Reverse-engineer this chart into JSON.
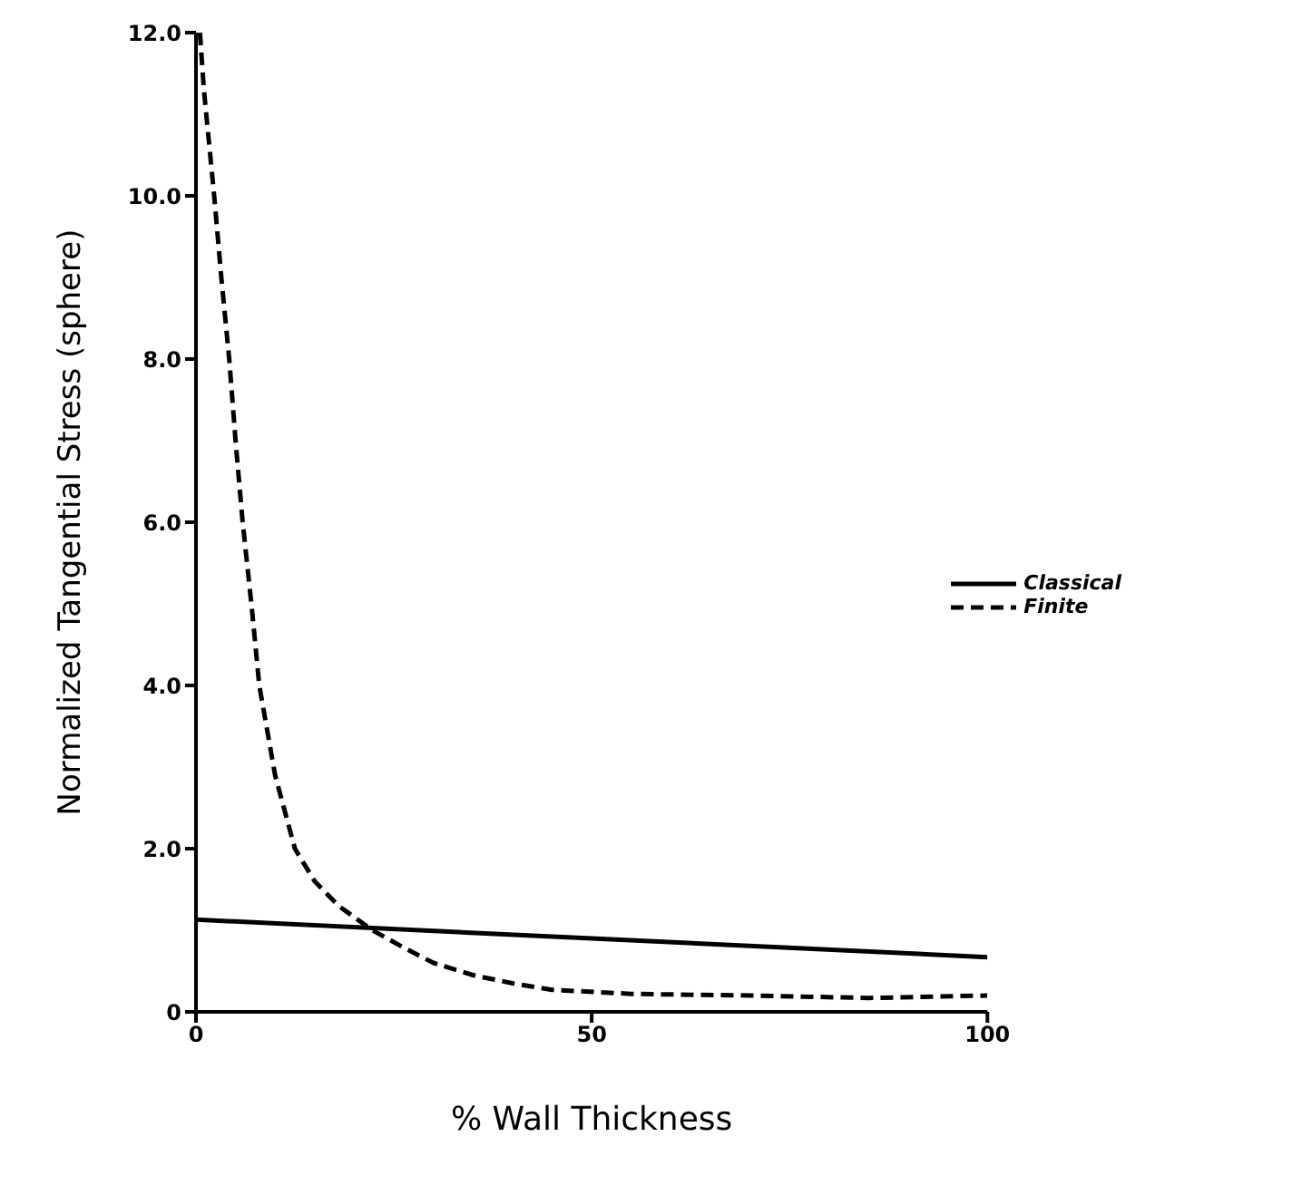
{
  "chart_data": {
    "type": "line",
    "xlabel": "% Wall Thickness",
    "ylabel": "Normalized Tangential Stress (sphere)",
    "xlim": [
      0,
      100
    ],
    "xticks": [
      0,
      50,
      100
    ],
    "ylim": [
      0,
      12
    ],
    "yticks": [
      0,
      {
        "value": 2,
        "label": "2.0"
      },
      {
        "value": 4,
        "label": "4.0"
      },
      {
        "value": 6,
        "label": "6.0"
      },
      {
        "value": 8,
        "label": "8.0"
      },
      {
        "value": 10,
        "label": "10.0"
      },
      {
        "value": 12,
        "label": "12.0"
      }
    ],
    "grid": false,
    "legend": "right",
    "marker": "none",
    "series": [
      {
        "name": "Classical",
        "color": "#000000",
        "line_style": "solid",
        "x": [
          0,
          50,
          100
        ],
        "values": [
          1.13,
          0.9,
          0.67
        ]
      },
      {
        "name": "Finite",
        "color": "#000000",
        "line_style": "dashed",
        "x": [
          0.5,
          1,
          2.3,
          3.2,
          4.2,
          5,
          5.9,
          7,
          8,
          10,
          12.5,
          15,
          18,
          22.3,
          26,
          30,
          35,
          40,
          45,
          55,
          70,
          85,
          100
        ],
        "values": [
          12.0,
          11.3,
          10.0,
          9.0,
          8.0,
          7.0,
          6.0,
          5.0,
          4.0,
          2.9,
          2.0,
          1.6,
          1.3,
          1.0,
          0.8,
          0.6,
          0.45,
          0.35,
          0.27,
          0.22,
          0.2,
          0.17,
          0.2
        ]
      }
    ]
  }
}
